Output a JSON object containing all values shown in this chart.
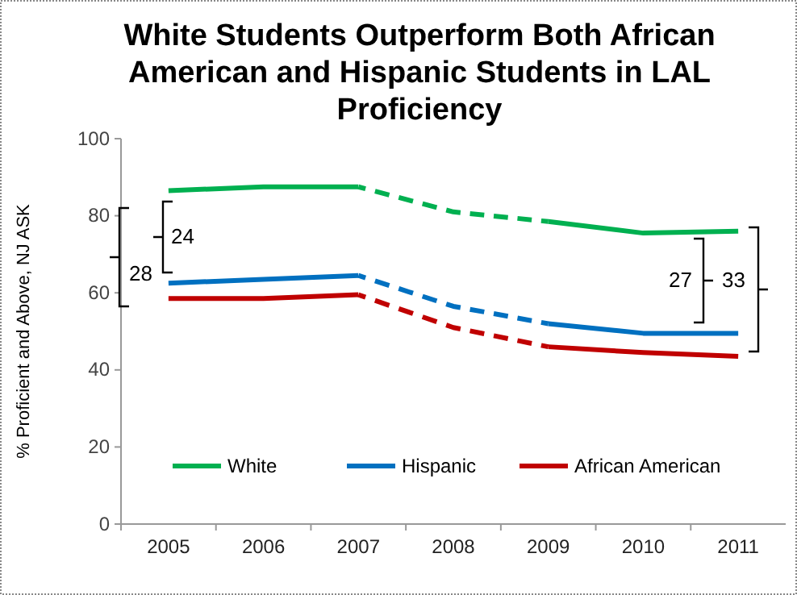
{
  "chart_data": {
    "type": "line",
    "title": "White Students Outperform Both African American and Hispanic Students in LAL Proficiency",
    "ylabel": "% Proficient and Above, NJ ASK",
    "categories": [
      "2005",
      "2006",
      "2007",
      "2008",
      "2009",
      "2010",
      "2011"
    ],
    "series": [
      {
        "color": "#00b050",
        "line_style": "dashed",
        "values": [
          null,
          null,
          87.5,
          81,
          78.5,
          null,
          null
        ]
      },
      {
        "color": "#0070c0",
        "line_style": "dashed",
        "values": [
          null,
          null,
          64.5,
          56.5,
          52,
          null,
          null
        ]
      },
      {
        "color": "#c00000",
        "line_style": "dashed",
        "values": [
          null,
          null,
          59.5,
          51,
          46,
          null,
          null
        ]
      },
      {
        "name": "White",
        "color": "#00b050",
        "values": [
          86.5,
          87.5,
          87.5,
          null,
          78.5,
          75.5,
          76
        ]
      },
      {
        "name": "Hispanic",
        "color": "#0070c0",
        "values": [
          62.5,
          63.5,
          64.5,
          null,
          52,
          49.5,
          49.5
        ]
      },
      {
        "name": "African American",
        "color": "#c00000",
        "values": [
          58.5,
          58.5,
          59.5,
          null,
          46,
          44.5,
          43.5
        ]
      }
    ],
    "ylim": [
      0,
      100
    ],
    "yticks": [
      0,
      20,
      40,
      60,
      80,
      100
    ],
    "legend": "bottom",
    "line_style": "solid",
    "annotations": [
      "24",
      "28",
      "27",
      "33"
    ]
  }
}
